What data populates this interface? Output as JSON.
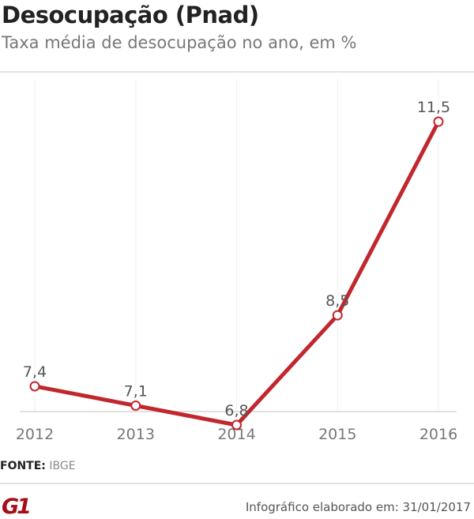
{
  "chart_data": {
    "type": "line",
    "title": "Desocupação (Pnad)",
    "subtitle": "Taxa média de desocupação no ano, em %",
    "categories": [
      "2012",
      "2013",
      "2014",
      "2015",
      "2016"
    ],
    "values": [
      7.4,
      7.1,
      6.8,
      8.5,
      11.5
    ],
    "labels": [
      "7,4",
      "7,1",
      "6,8",
      "8,5",
      "11,5"
    ],
    "line_color": "#c1272d",
    "grid": "vertical"
  },
  "footer": {
    "source_label": "FONTE:",
    "source": "IBGE",
    "credit": "Infográfico elaborado em: 31/01/2017",
    "logo": "G1"
  }
}
